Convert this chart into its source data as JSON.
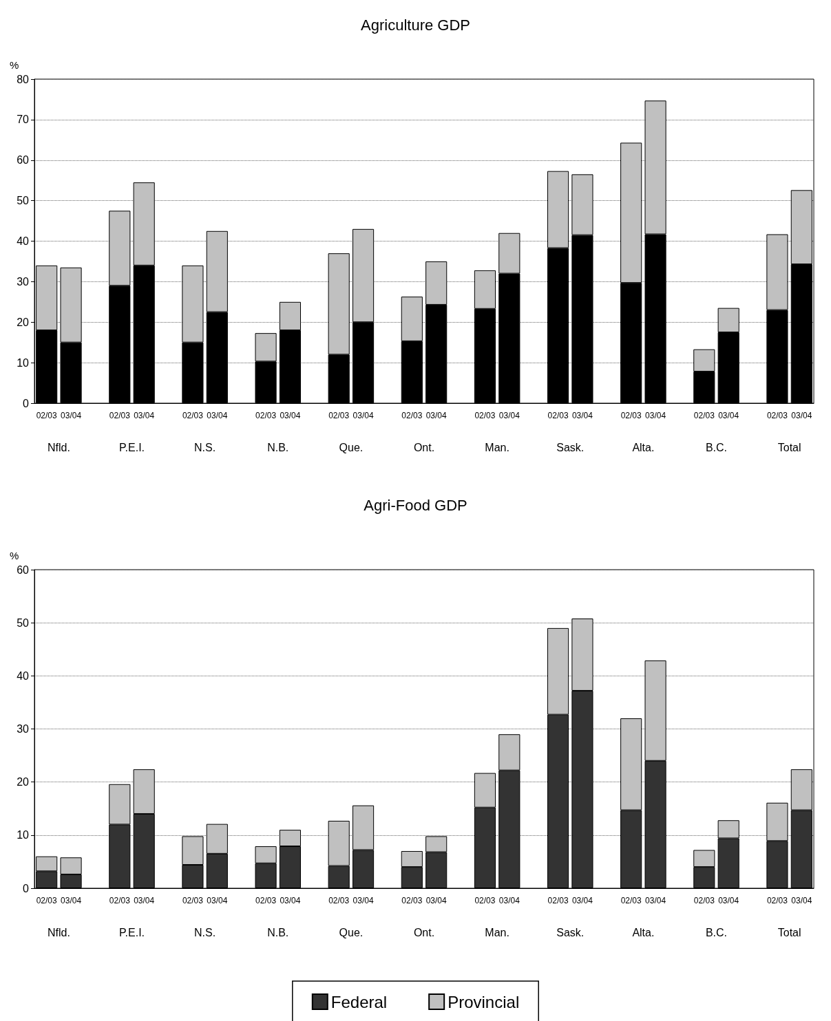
{
  "chart_data": [
    {
      "type": "bar",
      "title": "Agriculture GDP",
      "ylabel": "%",
      "stacked": true,
      "grid": "y",
      "legend": false,
      "categories": [
        "02/03",
        "03/04",
        null,
        "02/03",
        "03/04",
        null,
        "02/03",
        "03/04",
        null,
        "02/03",
        "03/04",
        null,
        "02/03",
        "03/04",
        null,
        "02/03",
        "03/04",
        null,
        "02/03",
        "03/04",
        null,
        "02/03",
        "03/04",
        null,
        "02/03",
        "03/04",
        null,
        "02/03",
        "03/04",
        null,
        "02/03",
        "03/04"
      ],
      "annotations": [
        "Nfld.",
        "P.E.I.",
        "N.S.",
        "N.B.",
        "Que.",
        "Ont.",
        "Man.",
        "Sask.",
        "Alta.",
        "B.C.",
        "Total"
      ],
      "ylim": [
        0,
        80
      ],
      "yticks": [
        0,
        10,
        20,
        30,
        40,
        50,
        60,
        70,
        80
      ],
      "series": [
        {
          "color": "#000000",
          "values": [
            18,
            15,
            null,
            29,
            34,
            null,
            15,
            22.5,
            null,
            10.3,
            18,
            null,
            12,
            20,
            null,
            15.3,
            24.3,
            null,
            23.3,
            32,
            null,
            38.3,
            41.5,
            null,
            29.7,
            41.7,
            null,
            7.8,
            17.5,
            null,
            23,
            34.3
          ]
        },
        {
          "color": "#c0c0c0",
          "values": [
            16,
            18.5,
            null,
            18.5,
            20.5,
            null,
            19,
            20,
            null,
            7,
            7,
            null,
            25,
            23,
            null,
            11,
            10.7,
            null,
            9.5,
            10,
            null,
            19,
            15,
            null,
            34.6,
            33,
            null,
            5.5,
            6,
            null,
            18.7,
            18.3
          ]
        }
      ]
    },
    {
      "type": "bar",
      "title": "Agri-Food GDP",
      "ylabel": "%",
      "stacked": true,
      "grid": "y",
      "legend": "bottom",
      "categories": [
        "02/03",
        "03/04",
        null,
        "02/03",
        "03/04",
        null,
        "02/03",
        "03/04",
        null,
        "02/03",
        "03/04",
        null,
        "02/03",
        "03/04",
        null,
        "02/03",
        "03/04",
        null,
        "02/03",
        "03/04",
        null,
        "02/03",
        "03/04",
        null,
        "02/03",
        "03/04",
        null,
        "02/03",
        "03/04",
        null,
        "02/03",
        "03/04"
      ],
      "annotations": [
        "Nfld.",
        "P.E.I.",
        "N.S.",
        "N.B.",
        "Que.",
        "Ont.",
        "Man.",
        "Sask.",
        "Alta.",
        "B.C.",
        "Total"
      ],
      "ylim": [
        0,
        60
      ],
      "yticks": [
        0,
        10,
        20,
        30,
        40,
        50,
        60
      ],
      "series": [
        {
          "name": "Federal",
          "color": "#333333",
          "values": [
            3.2,
            2.6,
            null,
            12,
            14,
            null,
            4.4,
            6.5,
            null,
            4.7,
            7.9,
            null,
            4.2,
            7.2,
            null,
            4,
            6.8,
            null,
            15.2,
            22.2,
            null,
            32.7,
            37.2,
            null,
            14.7,
            24,
            null,
            4,
            9.4,
            null,
            8.9,
            14.7
          ]
        },
        {
          "name": "Provincial",
          "color": "#c0c0c0",
          "values": [
            2.8,
            3.2,
            null,
            7.6,
            8.4,
            null,
            5.4,
            5.6,
            null,
            3.2,
            3.1,
            null,
            8.5,
            8.4,
            null,
            3,
            3,
            null,
            6.5,
            6.8,
            null,
            16.3,
            13.6,
            null,
            17.3,
            18.9,
            null,
            3.2,
            3.4,
            null,
            7.2,
            7.7
          ]
        }
      ]
    }
  ]
}
